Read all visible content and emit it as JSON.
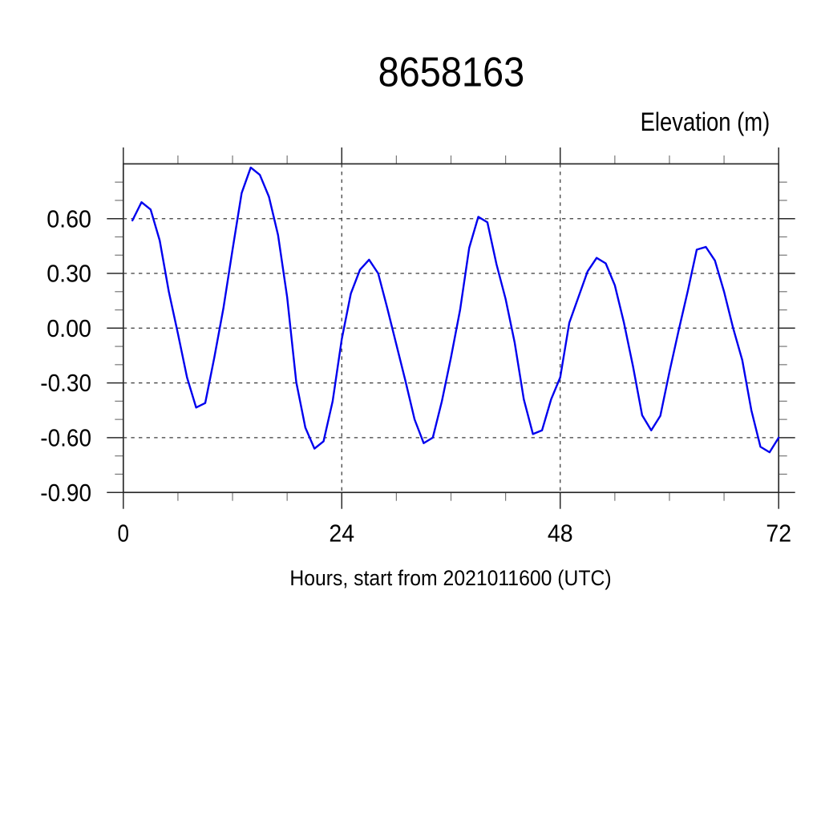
{
  "chart_data": {
    "type": "line",
    "title": "8658163",
    "ylabel": "Elevation (m)",
    "xlabel": "Hours, start from 2021011600 (UTC)",
    "xlim": [
      0,
      72
    ],
    "ylim": [
      -0.9,
      0.9
    ],
    "x_major_ticks": [
      0,
      24,
      48,
      72
    ],
    "x_tick_labels": [
      "0",
      "24",
      "48",
      "72"
    ],
    "x_minor_step": 6,
    "x_gridlines": [
      24,
      48
    ],
    "y_major_ticks": [
      -0.9,
      -0.6,
      -0.3,
      0.0,
      0.3,
      0.6
    ],
    "y_tick_labels": [
      "-0.90",
      "-0.60",
      "-0.30",
      "0.00",
      "0.30",
      "0.60"
    ],
    "y_minor_step": 0.1,
    "y_gridlines": [
      -0.6,
      -0.3,
      0.0,
      0.3,
      0.6
    ],
    "grid": "dashed",
    "legend": "none",
    "line_color": "#0404ee",
    "series": [
      {
        "name": "elevation",
        "x": [
          1,
          2,
          3,
          4,
          5,
          6,
          7,
          8,
          9,
          10,
          11,
          12,
          13,
          14,
          15,
          16,
          17,
          18,
          19,
          20,
          21,
          22,
          23,
          24,
          25,
          26,
          27,
          28,
          29,
          30,
          31,
          32,
          33,
          34,
          35,
          36,
          37,
          38,
          39,
          40,
          41,
          42,
          43,
          44,
          45,
          46,
          47,
          48,
          49,
          50,
          51,
          52,
          53,
          54,
          55,
          56,
          57,
          58,
          59,
          60,
          61,
          62,
          63,
          64,
          65,
          66,
          67,
          68,
          69,
          70,
          71,
          72
        ],
        "values": [
          0.59,
          0.69,
          0.65,
          0.48,
          0.2,
          -0.03,
          -0.27,
          -0.435,
          -0.41,
          -0.16,
          0.11,
          0.43,
          0.74,
          0.88,
          0.84,
          0.72,
          0.51,
          0.17,
          -0.295,
          -0.545,
          -0.66,
          -0.62,
          -0.4,
          -0.06,
          0.19,
          0.32,
          0.375,
          0.3,
          0.11,
          -0.09,
          -0.29,
          -0.5,
          -0.63,
          -0.6,
          -0.4,
          -0.16,
          0.1,
          0.44,
          0.61,
          0.58,
          0.35,
          0.16,
          -0.08,
          -0.39,
          -0.58,
          -0.56,
          -0.39,
          -0.27,
          0.03,
          0.17,
          0.31,
          0.385,
          0.355,
          0.235,
          0.03,
          -0.21,
          -0.477,
          -0.56,
          -0.48,
          -0.24,
          -0.015,
          0.2,
          0.43,
          0.445,
          0.37,
          0.2,
          0.0,
          -0.175,
          -0.45,
          -0.65,
          -0.68,
          -0.6
        ]
      }
    ]
  }
}
